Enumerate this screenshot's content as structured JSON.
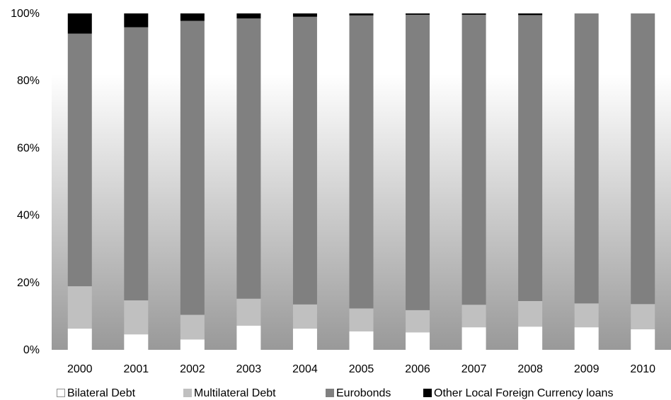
{
  "chart_data": {
    "type": "bar",
    "stacked": true,
    "percent_stacked": true,
    "title": "",
    "xlabel": "",
    "ylabel": "",
    "categories": [
      "2000",
      "2001",
      "2002",
      "2003",
      "2004",
      "2005",
      "2006",
      "2007",
      "2008",
      "2009",
      "2010"
    ],
    "ylim": [
      0,
      100
    ],
    "y_ticks": [
      0,
      20,
      40,
      60,
      80,
      100
    ],
    "y_tick_labels": [
      "0%",
      "20%",
      "40%",
      "60%",
      "80%",
      "100%"
    ],
    "grid": false,
    "legend_position": "bottom",
    "background": "vertical gradient, white at top to grey at bottom",
    "series": [
      {
        "name": "Bilateral Debt",
        "color": "#ffffff",
        "values": [
          6.3,
          4.6,
          3.1,
          7.2,
          6.3,
          5.5,
          5.2,
          6.7,
          6.9,
          6.7,
          6.1
        ]
      },
      {
        "name": "Multilateral Debt",
        "color": "#c0c0c0",
        "values": [
          12.6,
          10.1,
          7.3,
          8.0,
          7.2,
          6.8,
          6.6,
          6.7,
          7.6,
          7.1,
          7.5
        ]
      },
      {
        "name": "Eurobonds",
        "color": "#808080",
        "values": [
          75.1,
          81.2,
          87.4,
          83.3,
          85.5,
          87.1,
          87.8,
          86.2,
          85.0,
          86.2,
          86.4
        ]
      },
      {
        "name": "Other Local Foreign Currency loans",
        "color": "#000000",
        "values": [
          6.0,
          4.1,
          2.2,
          1.5,
          1.0,
          0.6,
          0.4,
          0.4,
          0.5,
          0.0,
          0.0
        ]
      }
    ]
  }
}
